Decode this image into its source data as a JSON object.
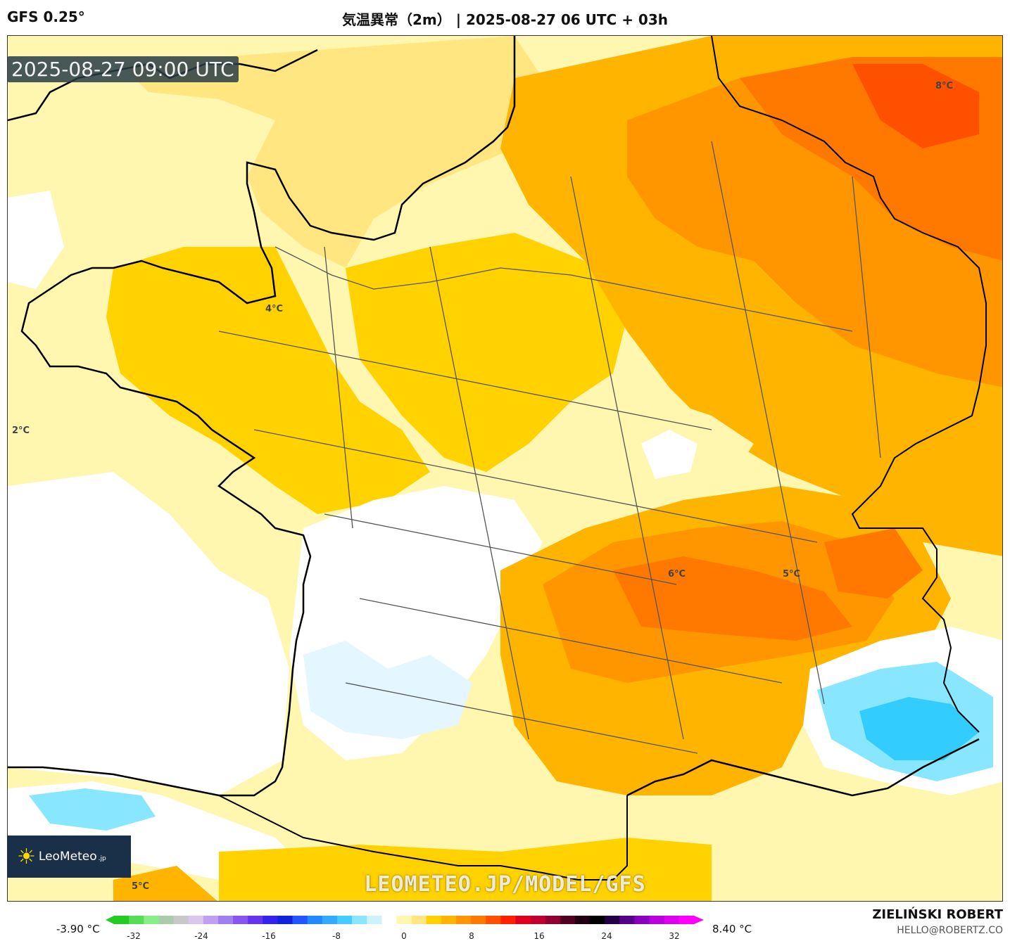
{
  "header": {
    "model": "GFS 0.25°",
    "title": "気温異常（2m） | 2025-08-27 06 UTC + 03h"
  },
  "map": {
    "valid_time": "2025-08-27 09:00 UTC",
    "contour_labels": [
      {
        "text": "8°C"
      },
      {
        "text": "4°C"
      },
      {
        "text": "2°C"
      },
      {
        "text": "6°C"
      },
      {
        "text": "5°C"
      },
      {
        "text": "5°C"
      }
    ],
    "watermark": "LEOMETEO.JP/MODEL/GFS",
    "logo": {
      "name": "LeoMeteo",
      "suffix": ".jp"
    }
  },
  "colorbar": {
    "min_value": "-3.90 °C",
    "max_value": "8.40 °C",
    "ticks": [
      "-32",
      "-24",
      "-16",
      "-8",
      "0",
      "8",
      "16",
      "24",
      "32"
    ],
    "colors": [
      "#22cc22",
      "#55dd55",
      "#88ee88",
      "#aaccaa",
      "#c8c8c8",
      "#d8c8ee",
      "#c0a0ee",
      "#a080ee",
      "#8855ee",
      "#6633ee",
      "#3322ee",
      "#1122dd",
      "#2255ff",
      "#2288ff",
      "#33aaff",
      "#44ccff",
      "#88e6ff",
      "#ccf2ff",
      "#ffffff",
      "#fff6b0",
      "#ffe680",
      "#ffd200",
      "#ffb400",
      "#ff9600",
      "#ff7800",
      "#ff5000",
      "#ff2000",
      "#e00020",
      "#c00030",
      "#900030",
      "#500020",
      "#200010",
      "#000000",
      "#220044",
      "#550088",
      "#8800bb",
      "#bb00dd",
      "#dd00ee",
      "#ff00ff"
    ]
  },
  "credits": {
    "author": "ZIELIŃSKI ROBERT",
    "email": "HELLO@ROBERTZ.CO"
  }
}
